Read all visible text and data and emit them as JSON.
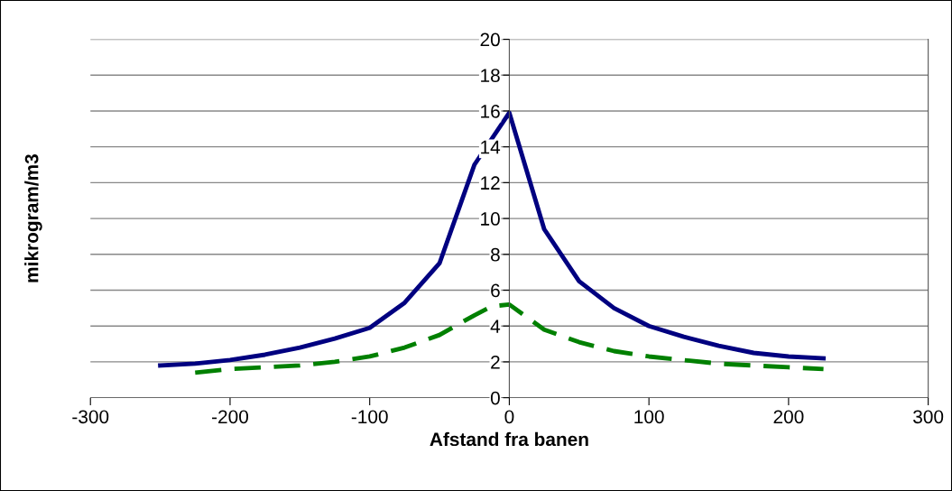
{
  "chart_data": {
    "type": "line",
    "xlabel": "Afstand fra banen",
    "ylabel": "mikrogram/m3",
    "xlim": [
      -300,
      300
    ],
    "xticks": [
      -300,
      -200,
      -100,
      0,
      100,
      200,
      300
    ],
    "ylim": [
      0,
      20
    ],
    "yticks": [
      0,
      2,
      4,
      6,
      8,
      10,
      12,
      14,
      16,
      18,
      20
    ],
    "grid": "y",
    "legend": false,
    "series": [
      {
        "color": "#000080",
        "line_style": "solid",
        "x": [
          -250,
          -225,
          -200,
          -175,
          -150,
          -125,
          -100,
          -75,
          -50,
          -25,
          0,
          25,
          50,
          75,
          100,
          125,
          150,
          175,
          200,
          225
        ],
        "values": [
          1.8,
          1.9,
          2.1,
          2.4,
          2.8,
          3.3,
          3.9,
          5.3,
          7.5,
          13.0,
          15.9,
          9.4,
          6.5,
          5.0,
          4.0,
          3.4,
          2.9,
          2.5,
          2.3,
          2.2
        ]
      },
      {
        "color": "#008000",
        "line_style": "dashed",
        "x": [
          -225,
          -200,
          -175,
          -150,
          -125,
          -100,
          -75,
          -50,
          -25,
          -12.5,
          0,
          25,
          50,
          75,
          100,
          125,
          150,
          175,
          200,
          225
        ],
        "values": [
          1.4,
          1.6,
          1.7,
          1.8,
          2.0,
          2.3,
          2.8,
          3.5,
          4.6,
          5.1,
          5.2,
          3.8,
          3.1,
          2.6,
          2.3,
          2.1,
          1.9,
          1.8,
          1.7,
          1.6
        ]
      }
    ]
  }
}
